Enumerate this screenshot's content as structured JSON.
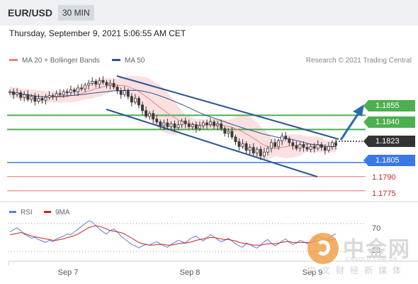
{
  "header": {
    "symbol": "EUR/USD",
    "timeframe": "30 MIN"
  },
  "timestamp": "Thursday, September 9, 2021 5:06:55 AM CET",
  "copyright": "Research © 2021 Trading Central",
  "colors": {
    "ma20": "#f08080",
    "ma50": "#2b5597",
    "resistance": "#4caf50",
    "support_blue": "#3b78e7",
    "support_red": "#e57373",
    "price_tag": "#333333",
    "bands": "#f8d3d3",
    "rsi": "#5a7fd6",
    "rsi_ma": "#cc2222",
    "candle": "#3a3a3a"
  },
  "watermark": {
    "name": "中金网",
    "url": "CNGOLD.COM.CN",
    "tagline": "中文财经新媒体"
  },
  "chart_data": [
    {
      "type": "candlestick",
      "instrument": "EUR/USD",
      "timeframe": "30 MIN",
      "legend": [
        {
          "label": "MA 20 + Bollinger Bands"
        },
        {
          "label": "MA 50"
        }
      ],
      "y_range": [
        1.1768,
        1.1905
      ],
      "x_labels": [
        "Sep 7",
        "Sep 8",
        "Sep 9"
      ],
      "close": [
        1.188,
        1.1877,
        1.1879,
        1.1874,
        1.1877,
        1.1872,
        1.1875,
        1.187,
        1.1873,
        1.1871,
        1.1874,
        1.1876,
        1.1875,
        1.1878,
        1.1877,
        1.188,
        1.1879,
        1.1882,
        1.188,
        1.1884,
        1.1883,
        1.1887,
        1.1889,
        1.1891,
        1.1888,
        1.1892,
        1.189,
        1.1887,
        1.1889,
        1.1885,
        1.1881,
        1.1877,
        1.1881,
        1.1875,
        1.1869,
        1.1873,
        1.1866,
        1.186,
        1.1854,
        1.1857,
        1.1851,
        1.1848,
        1.1844,
        1.1847,
        1.1843,
        1.1846,
        1.1842,
        1.1845,
        1.1849,
        1.1846,
        1.1843,
        1.1845,
        1.1841,
        1.1844,
        1.1847,
        1.1845,
        1.1848,
        1.1844,
        1.1846,
        1.1841,
        1.1836,
        1.1838,
        1.1832,
        1.1827,
        1.1822,
        1.1825,
        1.1818,
        1.1821,
        1.1815,
        1.1819,
        1.1812,
        1.1816,
        1.182,
        1.1826,
        1.1822,
        1.1828,
        1.1833,
        1.183,
        1.1826,
        1.1823,
        1.182,
        1.1824,
        1.1821,
        1.1819,
        1.1822,
        1.182,
        1.1824,
        1.1821,
        1.1818,
        1.1822,
        1.1826,
        1.1823
      ],
      "levels": [
        {
          "value": 1.1855,
          "label": "1.1855",
          "kind": "resistance",
          "tag": true
        },
        {
          "value": 1.184,
          "label": "1.1840",
          "kind": "resistance",
          "tag": true
        },
        {
          "value": 1.1823,
          "label": "1.1823",
          "kind": "last_price",
          "tag": true
        },
        {
          "value": 1.1805,
          "label": "1.1805",
          "kind": "support",
          "tag": true
        },
        {
          "value": 1.179,
          "label": "1.1790",
          "kind": "support",
          "tag": false
        },
        {
          "value": 1.1775,
          "label": "1.1775",
          "kind": "support",
          "tag": false
        }
      ]
    },
    {
      "type": "line",
      "legend": [
        {
          "label": "RSI"
        },
        {
          "label": "9MA"
        }
      ],
      "y_range": [
        20,
        80
      ],
      "y_ticks": [
        70,
        30
      ],
      "rsi": [
        58,
        61,
        64,
        60,
        55,
        52,
        49,
        50,
        47,
        45,
        43,
        46,
        44,
        48,
        50,
        52,
        55,
        54,
        58,
        62,
        66,
        70,
        74,
        72,
        67,
        62,
        58,
        55,
        60,
        62,
        58,
        52,
        48,
        44,
        40,
        38,
        35,
        38,
        40,
        39,
        42,
        44,
        41,
        38,
        36,
        40,
        43,
        46,
        44,
        42,
        47,
        50,
        52,
        48,
        45,
        50,
        54,
        51,
        47,
        44,
        46,
        49,
        45,
        41,
        38,
        36,
        42,
        40,
        37,
        35,
        39,
        44,
        47,
        42,
        38,
        41,
        45,
        48,
        43,
        40,
        42,
        46,
        44,
        41,
        43,
        47,
        52,
        50,
        46,
        49,
        53,
        55
      ],
      "rsi_ma": [
        54,
        55,
        56,
        57,
        56,
        54,
        52,
        51,
        50,
        49,
        48,
        47,
        46,
        46,
        47,
        48,
        50,
        51,
        53,
        55,
        58,
        61,
        64,
        66,
        67,
        66,
        64,
        62,
        60,
        59,
        58,
        57,
        55,
        52,
        49,
        46,
        43,
        41,
        40,
        39,
        39,
        40,
        40,
        40,
        39,
        39,
        40,
        41,
        42,
        42,
        43,
        44,
        46,
        47,
        48,
        49,
        50,
        50,
        49,
        48,
        47,
        47,
        46,
        45,
        43,
        42,
        41,
        40,
        39,
        39,
        39,
        40,
        41,
        41,
        41,
        42,
        43,
        44,
        44,
        43,
        43,
        43,
        43,
        43,
        43,
        44,
        45,
        46,
        46,
        46,
        47,
        48
      ]
    }
  ]
}
